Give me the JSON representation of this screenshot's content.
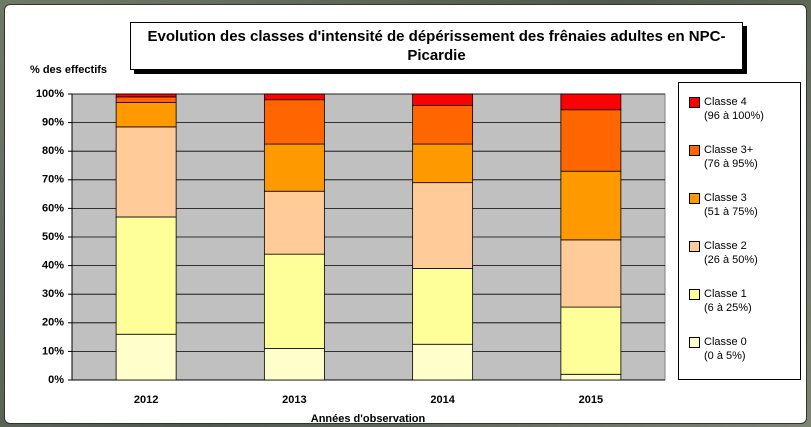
{
  "chart_data": {
    "type": "stacked_bar",
    "title": "Evolution des classes d'intensité de dépérissement des frênaies adultes en NPC-Picardie",
    "y_label": "% des effectifs",
    "x_label": "Années d'observation",
    "categories": [
      "2012",
      "2013",
      "2014",
      "2015"
    ],
    "series": [
      {
        "name": "Classe 0\n(0 à 5%)",
        "color": "#ffffcc",
        "values": [
          16,
          11,
          12.5,
          2
        ]
      },
      {
        "name": "Classe 1\n(6 à 25%)",
        "color": "#ffff99",
        "values": [
          41,
          33,
          26.5,
          23.5
        ]
      },
      {
        "name": "Classe 2\n(26 à 50%)",
        "color": "#ffcc99",
        "values": [
          31.5,
          22,
          30,
          23.5
        ]
      },
      {
        "name": "Classe 3\n(51 à 75%)",
        "color": "#ff9900",
        "values": [
          8.5,
          16.5,
          13.5,
          24
        ]
      },
      {
        "name": "Classe 3+\n(76 à 95%)",
        "color": "#ff6600",
        "values": [
          2,
          15.5,
          13.5,
          21.5
        ]
      },
      {
        "name": "Classe 4\n(96 à 100%)",
        "color": "#ff0000",
        "values": [
          1,
          2,
          4,
          5.5
        ]
      }
    ],
    "ylim": [
      0,
      100
    ],
    "yticks": [
      {
        "value": 0,
        "label": "0%"
      },
      {
        "value": 10,
        "label": "10%"
      },
      {
        "value": 20,
        "label": "20%"
      },
      {
        "value": 30,
        "label": "30%"
      },
      {
        "value": 40,
        "label": "40%"
      },
      {
        "value": 50,
        "label": "50%"
      },
      {
        "value": 60,
        "label": "60%"
      },
      {
        "value": 70,
        "label": "70%"
      },
      {
        "value": 80,
        "label": "80%"
      },
      {
        "value": 90,
        "label": "90%"
      },
      {
        "value": 100,
        "label": "100%"
      }
    ],
    "grid": true,
    "legend": "right"
  }
}
